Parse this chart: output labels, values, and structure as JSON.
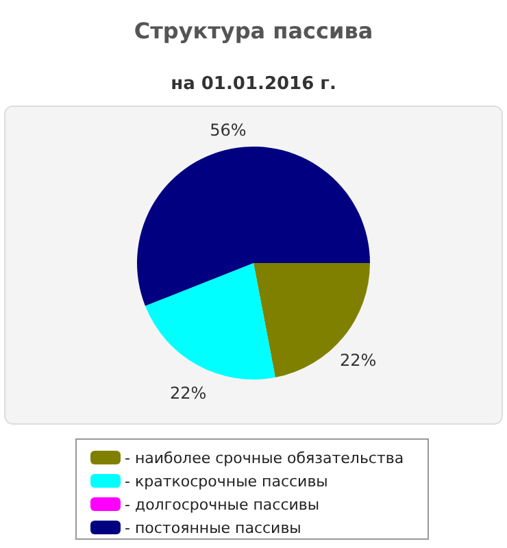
{
  "chart_data": {
    "type": "pie",
    "title": "Структура пассива",
    "subtitle": "на 01.01.2016 г.",
    "categories": [
      "- наиболее срочные обязательства",
      "- краткосрочные пассивы",
      "- долгосрочные пассивы",
      "- постоянные пассивы"
    ],
    "values": [
      22,
      22,
      0,
      56
    ],
    "colors": [
      "#808000",
      "#00ffff",
      "#ff00ff",
      "#000080"
    ],
    "value_labels": [
      "22%",
      "22%",
      null,
      "56%"
    ],
    "legend": "bottom"
  }
}
